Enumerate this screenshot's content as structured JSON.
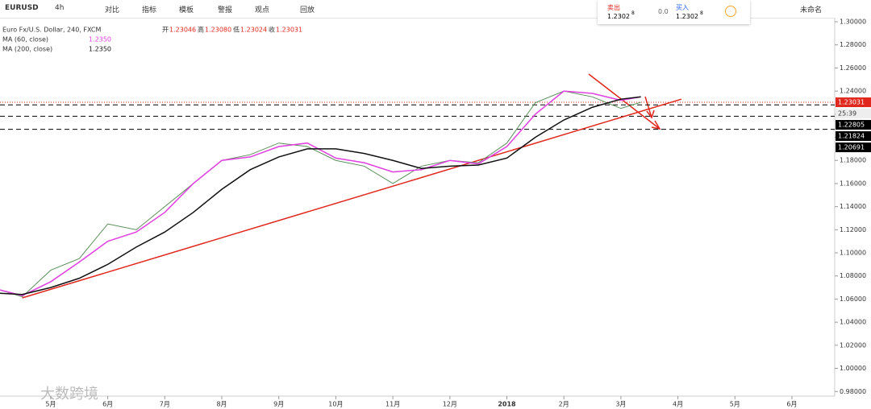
{
  "toolbar": {
    "symbol": "EURUSD",
    "interval": "4h",
    "items": [
      "对比",
      "指标",
      "模板",
      "警报",
      "观点",
      "回放"
    ],
    "sell_label": "卖出",
    "sell_price": "1.2302",
    "sell_sup": "8",
    "spread": "0.0",
    "buy_label": "买入",
    "buy_price": "1.2302",
    "buy_sup": "8",
    "layout_name": "未命名"
  },
  "legend": {
    "title": "Euro Fx/U.S. Dollar, 240, FXCM",
    "ohlc": [
      "开",
      "1.23046",
      "高",
      "1.23080",
      "低",
      "1.23024",
      "收",
      "1.23031"
    ],
    "ma60": "MA (60, close)",
    "ma60_value": "1.2350",
    "ma200": "MA (200, close)",
    "ma200_value": "1.2350"
  },
  "watermark": "大数跨境",
  "chart_data": {
    "type": "line",
    "x": [
      -0.9,
      -0.5,
      0,
      0.5,
      1,
      1.5,
      2,
      2.5,
      3,
      3.5,
      4,
      4.5,
      5,
      5.5,
      6,
      6.5,
      7,
      7.5,
      8,
      8.5,
      9,
      9.5,
      10,
      10.35
    ],
    "series": [
      {
        "name": "EURUSD",
        "color": "#5a8f5a",
        "values": [
          1.068,
          1.062,
          1.085,
          1.095,
          1.125,
          1.12,
          1.14,
          1.16,
          1.18,
          1.185,
          1.195,
          1.192,
          1.18,
          1.175,
          1.16,
          1.175,
          1.18,
          1.178,
          1.195,
          1.23,
          1.24,
          1.235,
          1.225,
          1.23031
        ]
      },
      {
        "name": "MA (60, close)",
        "color": "#e040e0",
        "values": [
          1.068,
          1.063,
          1.075,
          1.092,
          1.11,
          1.118,
          1.135,
          1.16,
          1.18,
          1.183,
          1.192,
          1.195,
          1.182,
          1.178,
          1.17,
          1.172,
          1.18,
          1.177,
          1.192,
          1.22,
          1.24,
          1.238,
          1.232,
          1.235
        ]
      },
      {
        "name": "MA (200, close)",
        "color": "#111111",
        "values": [
          1.065,
          1.064,
          1.07,
          1.078,
          1.09,
          1.105,
          1.118,
          1.135,
          1.155,
          1.172,
          1.183,
          1.19,
          1.19,
          1.186,
          1.18,
          1.173,
          1.175,
          1.176,
          1.182,
          1.2,
          1.215,
          1.226,
          1.233,
          1.235
        ]
      }
    ],
    "trendline": {
      "color": "#e0281e",
      "x": [
        -0.5,
        11.06
      ],
      "y": [
        1.061,
        1.233
      ]
    },
    "last_price": 1.23031,
    "countdown": "25:39",
    "levels": [
      1.22805,
      1.21824,
      1.20691
    ],
    "xlim": [
      -0.89,
      13.75
    ],
    "xticks": [
      {
        "value": 0,
        "label": "5月"
      },
      {
        "value": 1,
        "label": "6月"
      },
      {
        "value": 2,
        "label": "7月"
      },
      {
        "value": 3,
        "label": "8月"
      },
      {
        "value": 4,
        "label": "9月"
      },
      {
        "value": 5,
        "label": "10月"
      },
      {
        "value": 6,
        "label": "11月"
      },
      {
        "value": 7,
        "label": "12月"
      },
      {
        "value": 8,
        "label": "2018"
      },
      {
        "value": 9,
        "label": "2月"
      },
      {
        "value": 10,
        "label": "3月"
      },
      {
        "value": 11,
        "label": "4月"
      },
      {
        "value": 12,
        "label": "5月"
      },
      {
        "value": 13,
        "label": "6月"
      }
    ],
    "ylim": [
      0.976,
      1.3035
    ],
    "yticks": [
      {
        "value": 0.98,
        "label": "0.98000"
      },
      {
        "value": 1.0,
        "label": "1.00000"
      },
      {
        "value": 1.02,
        "label": "1.02000"
      },
      {
        "value": 1.04,
        "label": "1.04000"
      },
      {
        "value": 1.06,
        "label": "1.06000"
      },
      {
        "value": 1.08,
        "label": "1.08000"
      },
      {
        "value": 1.1,
        "label": "1.10000"
      },
      {
        "value": 1.12,
        "label": "1.12000"
      },
      {
        "value": 1.14,
        "label": "1.14000"
      },
      {
        "value": 1.16,
        "label": "1.16000"
      },
      {
        "value": 1.18,
        "label": "1.18000"
      },
      {
        "value": 1.2,
        "label": "1.20000"
      },
      {
        "value": 1.22,
        "label": "1.22000"
      },
      {
        "value": 1.24,
        "label": "1.24000"
      },
      {
        "value": 1.26,
        "label": "1.26000"
      },
      {
        "value": 1.28,
        "label": "1.28000"
      },
      {
        "value": 1.3,
        "label": "1.30000"
      }
    ],
    "grid": false
  }
}
